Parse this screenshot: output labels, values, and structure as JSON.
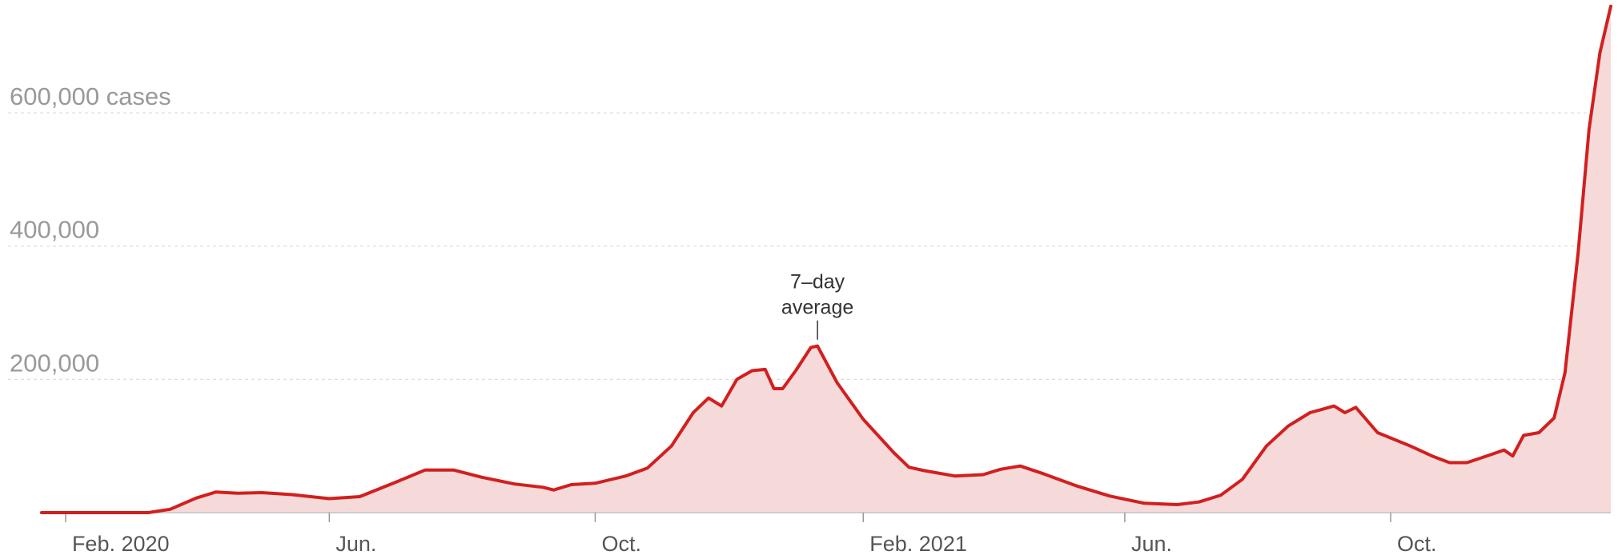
{
  "chart_data": {
    "type": "area",
    "title": "",
    "xlabel": "",
    "ylabel": "",
    "x_axis": {
      "start": "2020-01-21",
      "end": "2022-01-10",
      "ticks": [
        {
          "date": "2020-02-01",
          "label": "Feb. 2020"
        },
        {
          "date": "2020-06-01",
          "label": "Jun."
        },
        {
          "date": "2020-10-01",
          "label": "Oct."
        },
        {
          "date": "2021-02-01",
          "label": "Feb. 2021"
        },
        {
          "date": "2021-06-01",
          "label": "Jun."
        },
        {
          "date": "2021-10-01",
          "label": "Oct."
        }
      ]
    },
    "y_axis": {
      "ylim": [
        0,
        750000
      ],
      "ticks": [
        {
          "value": 200000,
          "label": "200,000"
        },
        {
          "value": 400000,
          "label": "400,000"
        },
        {
          "value": 600000,
          "label": "600,000 cases"
        }
      ],
      "grid": true
    },
    "annotation": {
      "date": "2021-01-11",
      "value": 250000,
      "line1": "7–day",
      "line2": "average"
    },
    "colors": {
      "line": "#d21f1f",
      "fill": "#f6dada"
    },
    "series": [
      {
        "type": "7-day average",
        "points": [
          [
            "2020-01-21",
            0
          ],
          [
            "2020-03-10",
            0
          ],
          [
            "2020-03-20",
            5000
          ],
          [
            "2020-04-01",
            22000
          ],
          [
            "2020-04-10",
            31000
          ],
          [
            "2020-04-20",
            29000
          ],
          [
            "2020-05-01",
            30000
          ],
          [
            "2020-05-15",
            27000
          ],
          [
            "2020-06-01",
            21000
          ],
          [
            "2020-06-15",
            24000
          ],
          [
            "2020-07-01",
            45000
          ],
          [
            "2020-07-15",
            64000
          ],
          [
            "2020-07-28",
            64000
          ],
          [
            "2020-08-10",
            53000
          ],
          [
            "2020-08-25",
            43000
          ],
          [
            "2020-09-07",
            38000
          ],
          [
            "2020-09-12",
            34000
          ],
          [
            "2020-09-20",
            42000
          ],
          [
            "2020-10-01",
            44000
          ],
          [
            "2020-10-15",
            55000
          ],
          [
            "2020-10-25",
            67000
          ],
          [
            "2020-11-05",
            100000
          ],
          [
            "2020-11-15",
            150000
          ],
          [
            "2020-11-22",
            172000
          ],
          [
            "2020-11-28",
            160000
          ],
          [
            "2020-12-05",
            200000
          ],
          [
            "2020-12-12",
            213000
          ],
          [
            "2020-12-18",
            215000
          ],
          [
            "2020-12-22",
            186000
          ],
          [
            "2020-12-26",
            186000
          ],
          [
            "2021-01-01",
            213000
          ],
          [
            "2021-01-08",
            248000
          ],
          [
            "2021-01-11",
            250000
          ],
          [
            "2021-01-20",
            195000
          ],
          [
            "2021-02-01",
            140000
          ],
          [
            "2021-02-15",
            90000
          ],
          [
            "2021-02-22",
            68000
          ],
          [
            "2021-03-01",
            63000
          ],
          [
            "2021-03-15",
            55000
          ],
          [
            "2021-03-28",
            57000
          ],
          [
            "2021-04-05",
            65000
          ],
          [
            "2021-04-14",
            70000
          ],
          [
            "2021-04-25",
            58000
          ],
          [
            "2021-05-10",
            40000
          ],
          [
            "2021-05-25",
            25000
          ],
          [
            "2021-06-10",
            14000
          ],
          [
            "2021-06-25",
            12000
          ],
          [
            "2021-07-05",
            16000
          ],
          [
            "2021-07-15",
            26000
          ],
          [
            "2021-07-25",
            50000
          ],
          [
            "2021-08-05",
            100000
          ],
          [
            "2021-08-15",
            130000
          ],
          [
            "2021-08-25",
            150000
          ],
          [
            "2021-09-05",
            160000
          ],
          [
            "2021-09-10",
            150000
          ],
          [
            "2021-09-15",
            158000
          ],
          [
            "2021-09-25",
            120000
          ],
          [
            "2021-10-10",
            100000
          ],
          [
            "2021-10-20",
            85000
          ],
          [
            "2021-10-28",
            75000
          ],
          [
            "2021-11-05",
            75000
          ],
          [
            "2021-11-15",
            86000
          ],
          [
            "2021-11-22",
            94000
          ],
          [
            "2021-11-26",
            85000
          ],
          [
            "2021-12-01",
            116000
          ],
          [
            "2021-12-08",
            120000
          ],
          [
            "2021-12-15",
            142000
          ],
          [
            "2021-12-20",
            210000
          ],
          [
            "2021-12-26",
            390000
          ],
          [
            "2021-12-31",
            575000
          ],
          [
            "2022-01-05",
            690000
          ],
          [
            "2022-01-10",
            760000
          ]
        ]
      }
    ]
  }
}
